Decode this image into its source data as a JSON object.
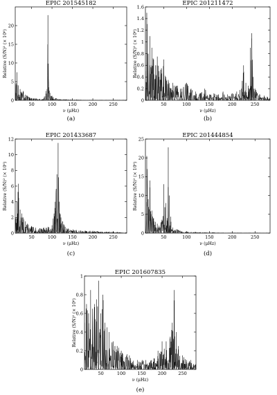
{
  "figure": {
    "panels": [
      {
        "caption": "(a)"
      },
      {
        "caption": "(b)"
      },
      {
        "caption": "(c)"
      },
      {
        "caption": "(d)"
      },
      {
        "caption": "(e)"
      }
    ]
  },
  "chart_data": [
    {
      "type": "line",
      "title": "EPIC 201545182",
      "xlabel": "ν (μHz)",
      "ylabel": "Relative (S/N)² (× 10⁶)",
      "xlim": [
        10,
        283
      ],
      "ylim": [
        0,
        25
      ],
      "xticks": [
        50,
        100,
        150,
        200,
        250
      ],
      "yticks": [
        0,
        5,
        10,
        15,
        20
      ],
      "grid": false,
      "series": [
        {
          "x": [
            10,
            14,
            18,
            22,
            26,
            30,
            35,
            40,
            45,
            50,
            60,
            70,
            80,
            85,
            88,
            90,
            92,
            95,
            100,
            110,
            120,
            140,
            160,
            180,
            200,
            220,
            240,
            260,
            283
          ],
          "y": [
            2,
            7.5,
            4,
            3,
            2,
            2.5,
            1.5,
            1.2,
            0.8,
            0.6,
            0.5,
            0.4,
            0.6,
            2.5,
            3,
            22.8,
            3.5,
            2,
            1.2,
            0.5,
            0.3,
            0.2,
            0.2,
            0.1,
            0.1,
            0.1,
            0.1,
            0.1,
            0.1
          ]
        }
      ]
    },
    {
      "type": "line",
      "title": "EPIC 201211472",
      "xlabel": "ν (μHz)",
      "ylabel": "Relative (S/N)² (× 10⁶)",
      "xlim": [
        10,
        283
      ],
      "ylim": [
        0,
        1.6
      ],
      "xticks": [
        50,
        100,
        150,
        200,
        250
      ],
      "yticks": [
        0,
        0.2,
        0.4,
        0.6,
        0.8,
        1.0,
        1.2,
        1.4,
        1.6
      ],
      "grid": false,
      "series": [
        {
          "x": [
            10,
            13,
            16,
            20,
            24,
            28,
            32,
            36,
            40,
            45,
            50,
            55,
            60,
            70,
            80,
            90,
            100,
            110,
            120,
            130,
            140,
            150,
            160,
            170,
            180,
            190,
            200,
            210,
            220,
            225,
            230,
            235,
            240,
            243,
            246,
            250,
            260,
            270,
            283
          ],
          "y": [
            0.5,
            1.5,
            0.8,
            1.1,
            0.9,
            0.7,
            0.6,
            0.75,
            0.5,
            0.55,
            0.7,
            0.4,
            0.35,
            0.3,
            0.25,
            0.2,
            0.3,
            0.2,
            0.15,
            0.12,
            0.2,
            0.1,
            0.12,
            0.1,
            0.15,
            0.1,
            0.12,
            0.15,
            0.2,
            0.6,
            0.3,
            0.25,
            0.9,
            1.15,
            0.4,
            0.2,
            0.1,
            0.08,
            0.05
          ]
        }
      ]
    },
    {
      "type": "line",
      "title": "EPIC 201433687",
      "xlabel": "ν (μHz)",
      "ylabel": "Relative (S/N)² (× 10⁶)",
      "xlim": [
        10,
        283
      ],
      "ylim": [
        0,
        12
      ],
      "xticks": [
        50,
        100,
        150,
        200,
        250
      ],
      "yticks": [
        0,
        2,
        4,
        6,
        8,
        10,
        12
      ],
      "grid": false,
      "series": [
        {
          "x": [
            10,
            14,
            18,
            22,
            26,
            30,
            35,
            40,
            50,
            60,
            70,
            80,
            90,
            100,
            105,
            108,
            112,
            115,
            118,
            122,
            126,
            130,
            140,
            160,
            180,
            200,
            220,
            240,
            260,
            283
          ],
          "y": [
            2,
            4,
            6.3,
            3,
            2.5,
            2,
            1.5,
            1.2,
            0.9,
            0.7,
            0.6,
            0.7,
            0.8,
            1,
            2.5,
            4,
            7.5,
            11.5,
            4,
            2,
            1.5,
            1,
            0.6,
            0.4,
            0.3,
            0.3,
            0.2,
            0.2,
            0.15,
            0.1
          ]
        }
      ]
    },
    {
      "type": "line",
      "title": "EPIC 201444854",
      "xlabel": "ν (μHz)",
      "ylabel": "Relative (S/N)² (× 10⁶)",
      "xlim": [
        10,
        283
      ],
      "ylim": [
        0,
        25
      ],
      "xticks": [
        50,
        100,
        150,
        200,
        250
      ],
      "yticks": [
        0,
        5,
        10,
        15,
        20,
        25
      ],
      "grid": false,
      "series": [
        {
          "x": [
            10,
            13,
            16,
            20,
            24,
            28,
            32,
            36,
            40,
            45,
            50,
            55,
            58,
            60,
            62,
            66,
            70,
            80,
            90,
            100,
            120,
            140,
            160,
            180,
            200,
            220,
            240,
            260,
            283
          ],
          "y": [
            5,
            20.5,
            9,
            14,
            6,
            4,
            3,
            2.5,
            2,
            3,
            13,
            8,
            4,
            22.8,
            10,
            3,
            1.5,
            1,
            0.5,
            0.4,
            0.3,
            0.2,
            0.2,
            0.1,
            0.1,
            0.1,
            0.1,
            0.1,
            0.1
          ]
        }
      ]
    },
    {
      "type": "line",
      "title": "EPIC 201607835",
      "xlabel": "ν (μHz)",
      "ylabel": "Relative (S/N)² (× 10⁶)",
      "xlim": [
        10,
        283
      ],
      "ylim": [
        0,
        1.0
      ],
      "xticks": [
        50,
        100,
        150,
        200,
        250
      ],
      "yticks": [
        0,
        0.2,
        0.4,
        0.6,
        0.8,
        1.0
      ],
      "grid": false,
      "series": [
        {
          "x": [
            10,
            15,
            20,
            25,
            30,
            35,
            40,
            45,
            50,
            55,
            60,
            65,
            70,
            80,
            90,
            100,
            120,
            140,
            160,
            180,
            190,
            200,
            210,
            220,
            225,
            230,
            235,
            240,
            250,
            260,
            270,
            283
          ],
          "y": [
            0.5,
            0.7,
            0.6,
            0.85,
            0.65,
            0.7,
            0.75,
            0.95,
            0.6,
            0.8,
            0.5,
            0.45,
            0.4,
            0.3,
            0.25,
            0.2,
            0.15,
            0.1,
            0.1,
            0.12,
            0.2,
            0.3,
            0.3,
            0.35,
            0.5,
            0.85,
            0.4,
            0.25,
            0.15,
            0.1,
            0.1,
            0.05
          ]
        }
      ]
    }
  ]
}
